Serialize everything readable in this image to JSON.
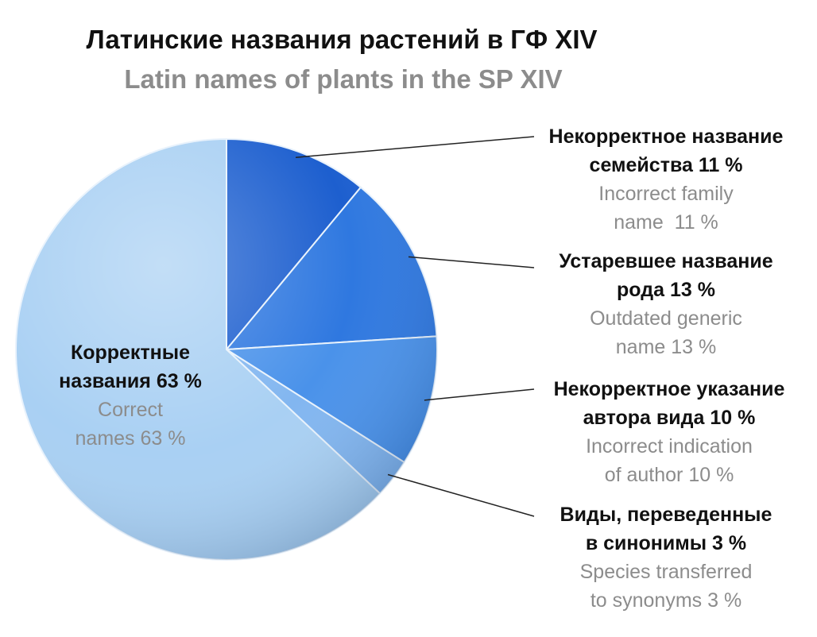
{
  "chart_data": {
    "type": "pie",
    "title": "Латинские названия растений в ГФ XIV",
    "subtitle": "Latin names of plants in the SP XIV",
    "slices": [
      {
        "id": "family",
        "value": 11,
        "color": "#1d5fcf",
        "label_ru": [
          "Некорректное название",
          "семейства 11 %"
        ],
        "label_en": [
          "Incorrect family",
          "name  11 %"
        ]
      },
      {
        "id": "genus",
        "value": 13,
        "color": "#2f78e0",
        "label_ru": [
          "Устаревшее название",
          "рода 13 %"
        ],
        "label_en": [
          "Outdated generic",
          "name 13 %"
        ]
      },
      {
        "id": "author",
        "value": 10,
        "color": "#4a92ea",
        "label_ru": [
          "Некорректное указание",
          "автора вида 10 %"
        ],
        "label_en": [
          "Incorrect indication",
          "of author 10 %"
        ]
      },
      {
        "id": "synonyms",
        "value": 3,
        "color": "#82b6f0",
        "label_ru": [
          "Виды, переведенные",
          "в синонимы 3 %"
        ],
        "label_en": [
          "Species transferred",
          "to synonyms 3 %"
        ]
      },
      {
        "id": "correct",
        "value": 63,
        "color": "#a9d0f3",
        "label_ru": [
          "Корректные",
          "названия 63 %"
        ],
        "label_en": [
          "Correct",
          "names 63 %"
        ]
      }
    ]
  }
}
